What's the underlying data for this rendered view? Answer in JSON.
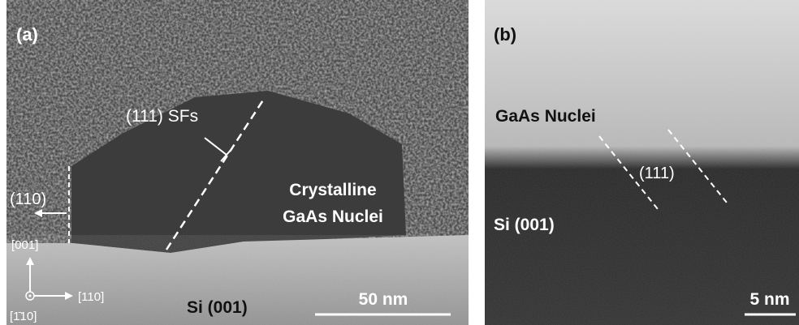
{
  "panel_a": {
    "label": "(a)",
    "annotation_sf": "(111) SFs",
    "nuclei_label": [
      "Crystalline",
      "GaAs Nuclei"
    ],
    "facet_label": "(110)",
    "axes": {
      "up": "[001]",
      "right": "[110]",
      "out": "[1̄10]"
    },
    "substrate": "Si (001)",
    "scale_bar": "50 nm"
  },
  "panel_b": {
    "label": "(b)",
    "nuclei_label": "GaAs Nuclei",
    "plane_label": "(111)",
    "substrate": "Si (001)",
    "scale_bar": "5 nm"
  }
}
